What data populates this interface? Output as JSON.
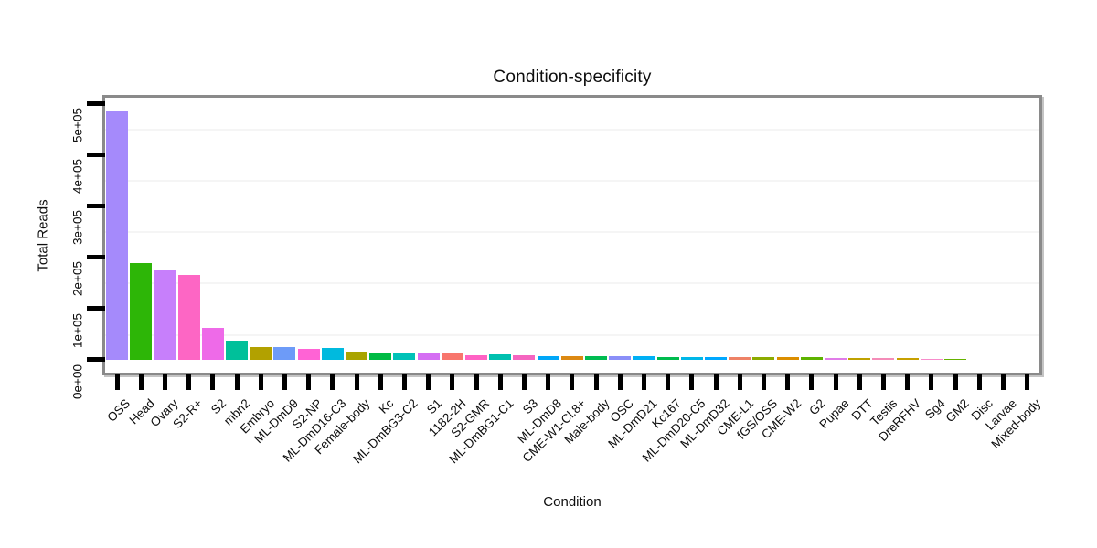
{
  "chart_data": {
    "type": "bar",
    "title": "Condition-specificity",
    "xlabel": "Condition",
    "ylabel": "Total Reads",
    "legend": "none",
    "grid": "minor-horizontal-only",
    "ylim": [
      0,
      512000
    ],
    "yticks": {
      "values": [
        0,
        100000,
        200000,
        300000,
        400000,
        500000
      ],
      "labels": [
        "0e+00",
        "1e+05",
        "2e+05",
        "3e+05",
        "4e+05",
        "5e+05"
      ]
    },
    "minor_grid_values": [
      50000,
      150000,
      250000,
      350000,
      450000
    ],
    "categories": [
      "OSS",
      "Head",
      "Ovary",
      "S2-R+",
      "S2",
      "mbn2",
      "Embryo",
      "ML-DmD9",
      "S2-NP",
      "ML-DmD16-C3",
      "Female-body",
      "Kc",
      "ML-DmBG3-C2",
      "S1",
      "1182-2H",
      "S2-GMR",
      "ML-DmBG1-C1",
      "S3",
      "ML-DmD8",
      "CME-W1-Cl.8+",
      "Male-body",
      "OSC",
      "ML-DmD21",
      "Kc167",
      "ML-DmD20-C5",
      "ML-DmD32",
      "CME-L1",
      "fGS/OSS",
      "CME-W2",
      "G2",
      "Pupae",
      "DTT",
      "Testis",
      "DreRFHV",
      "Sg4",
      "GM2",
      "Disc",
      "Larvae",
      "Mixed-body"
    ],
    "values": [
      486000,
      189000,
      174000,
      165000,
      61000,
      37000,
      25000,
      23500,
      20000,
      22000,
      15000,
      13500,
      12500,
      11500,
      12000,
      9000,
      9500,
      7500,
      7000,
      6800,
      6500,
      6500,
      6200,
      5000,
      5200,
      5000,
      4000,
      4500,
      3800,
      3800,
      3500,
      2200,
      2000,
      2200,
      1800,
      1500,
      0,
      0,
      0
    ],
    "bar_colors": [
      "#a58afb",
      "#2db607",
      "#c77ffb",
      "#fd66c4",
      "#ee6ae8",
      "#00c09a",
      "#b2a100",
      "#6d9bf8",
      "#ff63d5",
      "#00bade",
      "#a9a400",
      "#00bb44",
      "#00c2b7",
      "#d56ef3",
      "#f8766d",
      "#ff62c4",
      "#00c0af",
      "#f565c0",
      "#00a7f8",
      "#dc8912",
      "#00bc51",
      "#8a8ff8",
      "#00b0f5",
      "#00bb4e",
      "#00b7e8",
      "#00a8ff",
      "#ee8266",
      "#8cab00",
      "#db8e00",
      "#5eb300",
      "#e07ce8",
      "#bfa100",
      "#f48cb8",
      "#c7a000",
      "#f78ccb",
      "#66b200",
      "#999999",
      "#999999",
      "#999999"
    ]
  },
  "colors": {
    "background": "#ffffff",
    "panel_background": "#ffffff",
    "frame": "#8a8a8a",
    "tick": "#000000",
    "minor_grid": "#f5f5f5",
    "text": "#0d0d0d"
  }
}
